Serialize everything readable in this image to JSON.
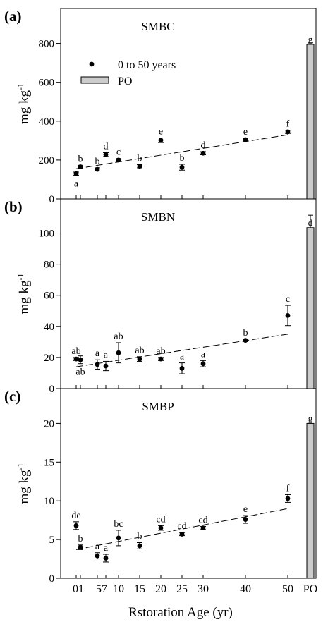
{
  "chart_data": [
    {
      "type": "scatter",
      "panel_label": "(a)",
      "title": "SMBC",
      "ylabel_main": "mg kg",
      "ylabel_sup": "-1",
      "ylim": [
        0,
        980
      ],
      "yticks": [
        0,
        200,
        400,
        600,
        800
      ],
      "legend": {
        "point_label": "0 to 50 years",
        "bar_label": "PO",
        "placement": "top-left"
      },
      "points": [
        {
          "x": 0,
          "y": 130,
          "err": 8,
          "letter": "a",
          "letter_pos": "below"
        },
        {
          "x": 1,
          "y": 165,
          "err": 8,
          "letter": "b",
          "letter_pos": "above"
        },
        {
          "x": 5,
          "y": 152,
          "err": 8,
          "letter": "b",
          "letter_pos": "above"
        },
        {
          "x": 7,
          "y": 228,
          "err": 10,
          "letter": "d",
          "letter_pos": "above"
        },
        {
          "x": 10,
          "y": 200,
          "err": 8,
          "letter": "c",
          "letter_pos": "above"
        },
        {
          "x": 15,
          "y": 168,
          "err": 8,
          "letter": "b",
          "letter_pos": "above"
        },
        {
          "x": 20,
          "y": 302,
          "err": 12,
          "letter": "e",
          "letter_pos": "above"
        },
        {
          "x": 25,
          "y": 163,
          "err": 15,
          "letter": "b",
          "letter_pos": "above"
        },
        {
          "x": 30,
          "y": 235,
          "err": 8,
          "letter": "d",
          "letter_pos": "above"
        },
        {
          "x": 40,
          "y": 305,
          "err": 8,
          "letter": "e",
          "letter_pos": "above"
        },
        {
          "x": 50,
          "y": 345,
          "err": 8,
          "letter": "f",
          "letter_pos": "above"
        }
      ],
      "trend": [
        155,
        330
      ],
      "po": {
        "value": 795,
        "err": 8,
        "letter": "g"
      }
    },
    {
      "type": "scatter",
      "panel_label": "(b)",
      "title": "SMBN",
      "ylabel_main": "mg kg",
      "ylabel_sup": "-1",
      "ylim": [
        0,
        122
      ],
      "yticks": [
        0,
        20,
        40,
        60,
        80,
        100
      ],
      "points": [
        {
          "x": 0,
          "y": 19,
          "err": 1,
          "letter": "ab",
          "letter_pos": "above"
        },
        {
          "x": 1,
          "y": 18.5,
          "err": 2.5,
          "letter": "ab",
          "letter_pos": "below"
        },
        {
          "x": 5,
          "y": 15.5,
          "err": 3,
          "letter": "a",
          "letter_pos": "above"
        },
        {
          "x": 7,
          "y": 14.5,
          "err": 3,
          "letter": "a",
          "letter_pos": "above"
        },
        {
          "x": 10,
          "y": 23,
          "err": 6.5,
          "letter": "ab",
          "letter_pos": "above"
        },
        {
          "x": 15,
          "y": 19,
          "err": 1.5,
          "letter": "ab",
          "letter_pos": "above"
        },
        {
          "x": 20,
          "y": 19,
          "err": 1,
          "letter": "ab",
          "letter_pos": "above"
        },
        {
          "x": 25,
          "y": 13,
          "err": 3.5,
          "letter": "a",
          "letter_pos": "above"
        },
        {
          "x": 30,
          "y": 16,
          "err": 2,
          "letter": "a",
          "letter_pos": "above"
        },
        {
          "x": 40,
          "y": 31,
          "err": 0.8,
          "letter": "b",
          "letter_pos": "above"
        },
        {
          "x": 50,
          "y": 47,
          "err": 6.5,
          "letter": "c",
          "letter_pos": "above"
        }
      ],
      "trend": [
        14,
        35
      ],
      "po": {
        "value": 103.5,
        "err": 8,
        "letter": "d"
      }
    },
    {
      "type": "scatter",
      "panel_label": "(c)",
      "title": "SMBP",
      "ylabel_main": "mg kg",
      "ylabel_sup": "-1",
      "xlabel": "Rstoration Age (yr)",
      "ylim": [
        0,
        24.5
      ],
      "yticks": [
        0,
        5,
        10,
        15,
        20
      ],
      "xtick_labels": [
        "01",
        "57",
        "10",
        "15",
        "20",
        "25",
        "30",
        "40",
        "50",
        "PO"
      ],
      "points": [
        {
          "x": 0,
          "y": 6.8,
          "err": 0.5,
          "letter": "de",
          "letter_pos": "above"
        },
        {
          "x": 1,
          "y": 4.0,
          "err": 0.3,
          "letter": "b",
          "letter_pos": "above"
        },
        {
          "x": 5,
          "y": 2.9,
          "err": 0.4,
          "letter": "a",
          "letter_pos": "above"
        },
        {
          "x": 7,
          "y": 2.6,
          "err": 0.5,
          "letter": "a",
          "letter_pos": "above"
        },
        {
          "x": 10,
          "y": 5.2,
          "err": 1.0,
          "letter": "bc",
          "letter_pos": "above"
        },
        {
          "x": 15,
          "y": 4.2,
          "err": 0.4,
          "letter": "b",
          "letter_pos": "above"
        },
        {
          "x": 20,
          "y": 6.5,
          "err": 0.3,
          "letter": "cd",
          "letter_pos": "above"
        },
        {
          "x": 25,
          "y": 5.7,
          "err": 0.2,
          "letter": "cd",
          "letter_pos": "above"
        },
        {
          "x": 30,
          "y": 6.5,
          "err": 0.2,
          "letter": "cd",
          "letter_pos": "above"
        },
        {
          "x": 40,
          "y": 7.6,
          "err": 0.5,
          "letter": "e",
          "letter_pos": "above"
        },
        {
          "x": 50,
          "y": 10.3,
          "err": 0.5,
          "letter": "f",
          "letter_pos": "above"
        }
      ],
      "trend": [
        3.7,
        9.0
      ],
      "po": {
        "value": 20,
        "err": 0,
        "letter": "g"
      }
    }
  ]
}
